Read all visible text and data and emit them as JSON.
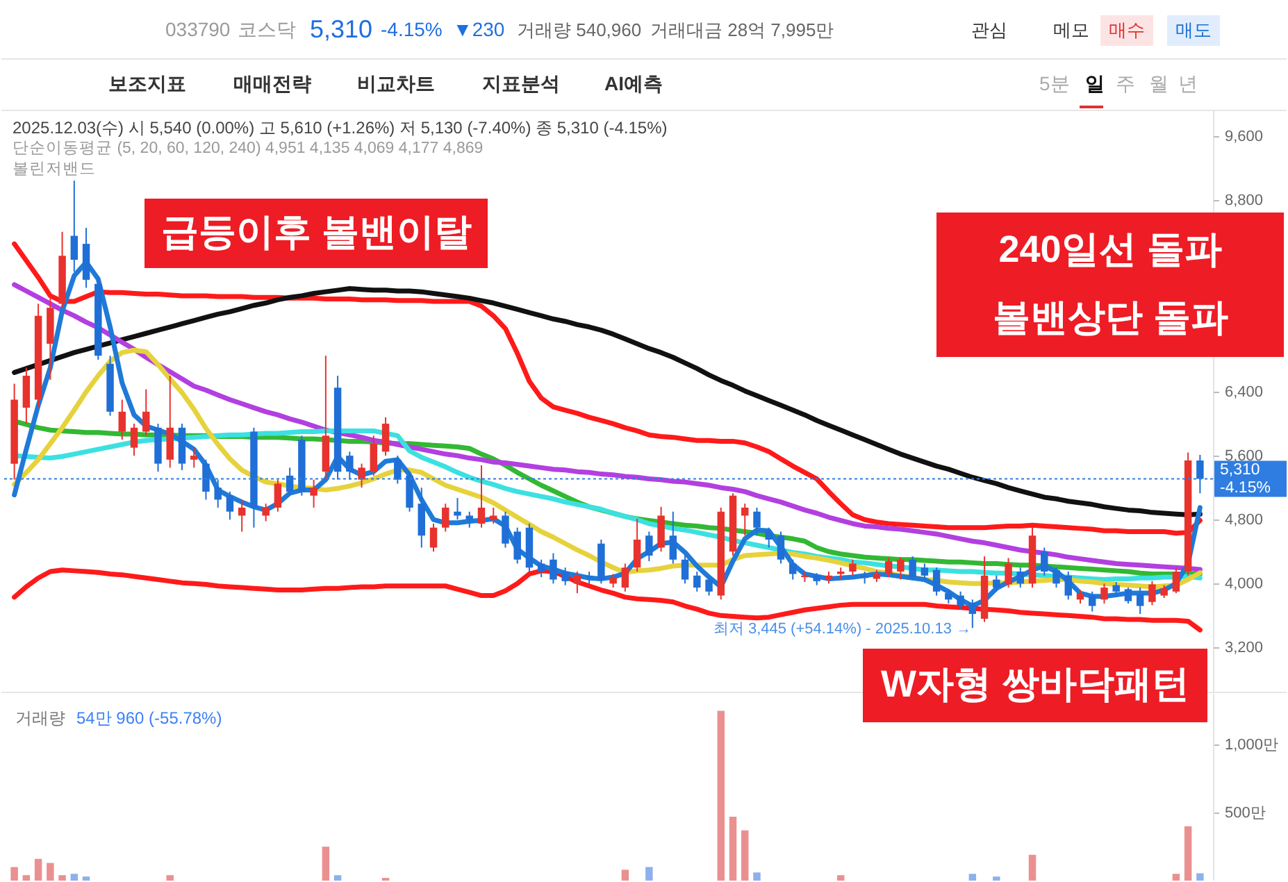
{
  "chart_data": [
    {
      "type": "other",
      "annotations": [
        "033790",
        "코스닥",
        "5,310",
        "-4.15%",
        "▼230",
        "거래량 540,960",
        "거래대금 28억 7,995만",
        "관심",
        "메모",
        "매수",
        "매도",
        "보조지표",
        "매매전략",
        "비교차트",
        "지표분석",
        "AI예측",
        "5분",
        "일",
        "주",
        "월",
        "년"
      ]
    },
    {
      "type": "candlestick",
      "categories": [
        null,
        null,
        null,
        null,
        null,
        null,
        null,
        null,
        null,
        null,
        null,
        null,
        null,
        null,
        null,
        null,
        null,
        null,
        null,
        null,
        null,
        null,
        null,
        null,
        null,
        null,
        null,
        null,
        null,
        null,
        null,
        null,
        null,
        null,
        null,
        null,
        null,
        null,
        null,
        null,
        null,
        null,
        null,
        null,
        null,
        null,
        null,
        null,
        null,
        null,
        null,
        null,
        null,
        null,
        null,
        null,
        null,
        null,
        null,
        null,
        null,
        null,
        null,
        null,
        null,
        null,
        null,
        null,
        null,
        null,
        null,
        null,
        null,
        null,
        null,
        null,
        null,
        null,
        null,
        null,
        null,
        null,
        null,
        null,
        null,
        null,
        null,
        null,
        null,
        null,
        null,
        null,
        null,
        null,
        null,
        null,
        null,
        null,
        null,
        null
      ],
      "ohlc": [
        [
          5500,
          6500,
          5300,
          6300
        ],
        [
          6200,
          6700,
          6000,
          6600
        ],
        [
          6300,
          7500,
          6200,
          7350
        ],
        [
          7000,
          7600,
          6550,
          7450
        ],
        [
          7500,
          8400,
          7450,
          8100
        ],
        [
          8350,
          9040,
          7900,
          8050
        ],
        [
          8250,
          8450,
          7700,
          7800
        ],
        [
          7750,
          7850,
          6800,
          6850
        ],
        [
          6750,
          6850,
          6100,
          6150
        ],
        [
          5900,
          6300,
          5800,
          6150
        ],
        [
          5700,
          6000,
          5600,
          5950
        ],
        [
          5900,
          6430,
          5850,
          6150
        ],
        [
          5950,
          6000,
          5400,
          5500
        ],
        [
          5550,
          6600,
          5450,
          5950
        ],
        [
          5950,
          6000,
          5420,
          5500
        ],
        [
          5550,
          5700,
          5450,
          5600
        ],
        [
          5500,
          5550,
          5050,
          5150
        ],
        [
          5200,
          5300,
          4950,
          5050
        ],
        [
          5100,
          5150,
          4800,
          4900
        ],
        [
          4850,
          5050,
          4650,
          4950
        ],
        [
          5900,
          5950,
          4700,
          4950
        ],
        [
          4850,
          5000,
          4780,
          4950
        ],
        [
          4950,
          5300,
          4900,
          5250
        ],
        [
          5350,
          5450,
          5100,
          5150
        ],
        [
          5800,
          5850,
          5100,
          5150
        ],
        [
          5100,
          5300,
          4950,
          5200
        ],
        [
          5400,
          6850,
          5300,
          5850
        ],
        [
          6450,
          6600,
          5300,
          5400
        ],
        [
          5600,
          5650,
          5300,
          5400
        ],
        [
          5300,
          5500,
          5200,
          5450
        ],
        [
          5400,
          5850,
          5350,
          5750
        ],
        [
          5650,
          6080,
          5600,
          6000
        ],
        [
          5550,
          5600,
          5250,
          5300
        ],
        [
          5350,
          5400,
          4900,
          4950
        ],
        [
          5000,
          5200,
          4450,
          4600
        ],
        [
          4450,
          4750,
          4400,
          4700
        ],
        [
          4700,
          5000,
          4650,
          4950
        ],
        [
          4900,
          5070,
          4800,
          4850
        ],
        [
          4850,
          4900,
          4700,
          4800
        ],
        [
          4750,
          5480,
          4700,
          4950
        ],
        [
          4800,
          4950,
          4750,
          4850
        ],
        [
          4850,
          4900,
          4450,
          4500
        ],
        [
          4650,
          4700,
          4250,
          4300
        ],
        [
          4700,
          4750,
          4150,
          4200
        ],
        [
          4250,
          4300,
          4080,
          4150
        ],
        [
          4300,
          4380,
          4000,
          4050
        ],
        [
          4150,
          4200,
          3980,
          4030
        ],
        [
          4000,
          4150,
          3880,
          4100
        ],
        [
          4100,
          4150,
          4000,
          4080
        ],
        [
          4500,
          4550,
          4000,
          4050
        ],
        [
          4000,
          4120,
          3950,
          4080
        ],
        [
          3950,
          4250,
          3900,
          4200
        ],
        [
          4200,
          4810,
          4150,
          4550
        ],
        [
          4600,
          4650,
          4280,
          4350
        ],
        [
          4450,
          4960,
          4400,
          4850
        ],
        [
          4600,
          4900,
          4250,
          4300
        ],
        [
          4300,
          4350,
          4000,
          4050
        ],
        [
          4100,
          4150,
          3900,
          3950
        ],
        [
          4050,
          4100,
          3850,
          3900
        ],
        [
          3850,
          4950,
          3800,
          4900
        ],
        [
          4400,
          5130,
          4350,
          5100
        ],
        [
          4850,
          5000,
          4600,
          4950
        ],
        [
          4900,
          4950,
          4600,
          4700
        ],
        [
          4650,
          4700,
          4450,
          4550
        ],
        [
          4600,
          4650,
          4250,
          4300
        ],
        [
          4250,
          4300,
          4050,
          4120
        ],
        [
          4080,
          4150,
          4020,
          4100
        ],
        [
          4100,
          4130,
          3980,
          4030
        ],
        [
          4050,
          4150,
          4000,
          4100
        ],
        [
          4120,
          4200,
          4050,
          4150
        ],
        [
          4150,
          4300,
          4100,
          4250
        ],
        [
          4100,
          4150,
          4000,
          4070
        ],
        [
          4060,
          4170,
          4020,
          4120
        ],
        [
          4120,
          4320,
          4080,
          4280
        ],
        [
          4150,
          4330,
          4050,
          4300
        ],
        [
          4300,
          4340,
          4050,
          4080
        ],
        [
          4200,
          4250,
          4050,
          4100
        ],
        [
          4170,
          4200,
          3850,
          3900
        ],
        [
          3880,
          3920,
          3750,
          3800
        ],
        [
          3850,
          3900,
          3680,
          3720
        ],
        [
          3760,
          3800,
          3445,
          3620
        ],
        [
          3560,
          4340,
          3520,
          4100
        ],
        [
          4050,
          4100,
          3900,
          3950
        ],
        [
          3990,
          4320,
          3950,
          4250
        ],
        [
          4150,
          4200,
          3950,
          4000
        ],
        [
          4000,
          4700,
          3950,
          4600
        ],
        [
          4400,
          4450,
          4100,
          4150
        ],
        [
          4170,
          4200,
          3950,
          4000
        ],
        [
          4100,
          4150,
          3800,
          3850
        ],
        [
          3800,
          3920,
          3750,
          3880
        ],
        [
          3850,
          3900,
          3650,
          3720
        ],
        [
          3800,
          4000,
          3750,
          3950
        ],
        [
          3980,
          4020,
          3850,
          3900
        ],
        [
          3930,
          3950,
          3750,
          3780
        ],
        [
          3870,
          3950,
          3620,
          3720
        ],
        [
          3770,
          4030,
          3730,
          3990
        ],
        [
          3850,
          3980,
          3820,
          3940
        ],
        [
          3900,
          4200,
          3880,
          4150
        ],
        [
          4150,
          5640,
          4100,
          5540
        ],
        [
          5540,
          5610,
          5130,
          5310
        ]
      ],
      "colors": [
        "#e8322e",
        "#e8322e",
        "#e8322e",
        "#e8322e",
        "#e8322e",
        "#1f6fd6",
        "#1f6fd6",
        "#1f6fd6",
        "#1f6fd6",
        "#e8322e",
        "#e8322e",
        "#e8322e",
        "#1f6fd6",
        "#e8322e",
        "#1f6fd6",
        "#e8322e",
        "#1f6fd6",
        "#1f6fd6",
        "#1f6fd6",
        "#e8322e",
        "#1f6fd6",
        "#e8322e",
        "#e8322e",
        "#1f6fd6",
        "#1f6fd6",
        "#e8322e",
        "#e8322e",
        "#1f6fd6",
        "#1f6fd6",
        "#e8322e",
        "#e8322e",
        "#e8322e",
        "#1f6fd6",
        "#1f6fd6",
        "#1f6fd6",
        "#e8322e",
        "#e8322e",
        "#1f6fd6",
        "#1f6fd6",
        "#e8322e",
        "#e8322e",
        "#1f6fd6",
        "#1f6fd6",
        "#1f6fd6",
        "#1f6fd6",
        "#1f6fd6",
        "#1f6fd6",
        "#e8322e",
        "#1f6fd6",
        "#1f6fd6",
        "#e8322e",
        "#e8322e",
        "#e8322e",
        "#1f6fd6",
        "#e8322e",
        "#1f6fd6",
        "#1f6fd6",
        "#1f6fd6",
        "#1f6fd6",
        "#e8322e",
        "#e8322e",
        "#e8322e",
        "#1f6fd6",
        "#1f6fd6",
        "#1f6fd6",
        "#1f6fd6",
        "#e8322e",
        "#1f6fd6",
        "#e8322e",
        "#e8322e",
        "#e8322e",
        "#1f6fd6",
        "#e8322e",
        "#e8322e",
        "#e8322e",
        "#1f6fd6",
        "#1f6fd6",
        "#1f6fd6",
        "#1f6fd6",
        "#1f6fd6",
        "#1f6fd6",
        "#e8322e",
        "#1f6fd6",
        "#e8322e",
        "#1f6fd6",
        "#e8322e",
        "#1f6fd6",
        "#1f6fd6",
        "#1f6fd6",
        "#e8322e",
        "#1f6fd6",
        "#e8322e",
        "#1f6fd6",
        "#1f6fd6",
        "#1f6fd6",
        "#e8322e",
        "#e8322e",
        "#e8322e",
        "#e8322e",
        "#1f6fd6"
      ],
      "series": [
        {
          "type": "line",
          "color": "#ff1a1a",
          "values": [
            8250,
            8040,
            7830,
            7600,
            7530,
            7530,
            7590,
            7650,
            7640,
            7640,
            7630,
            7620,
            7620,
            7610,
            7600,
            7600,
            7600,
            7590,
            7590,
            7590,
            7580,
            7580,
            7580,
            7570,
            7570,
            7570,
            7560,
            7560,
            7560,
            7550,
            7550,
            7550,
            7540,
            7540,
            7540,
            7530,
            7530,
            7530,
            7530,
            7470,
            7350,
            7190,
            6880,
            6530,
            6320,
            6210,
            6170,
            6130,
            6080,
            6040,
            6000,
            5950,
            5910,
            5860,
            5840,
            5830,
            5810,
            5790,
            5790,
            5780,
            5780,
            5760,
            5710,
            5650,
            5560,
            5470,
            5390,
            5310,
            5150,
            5000,
            4860,
            4800,
            4770,
            4750,
            4740,
            4730,
            4720,
            4710,
            4700,
            4700,
            4700,
            4700,
            4710,
            4720,
            4720,
            4730,
            4720,
            4710,
            4700,
            4690,
            4680,
            4660,
            4660,
            4650,
            4650,
            4650,
            4650,
            4630,
            4640,
            4790
          ]
        },
        {
          "type": "line",
          "color": "#33b833",
          "values": [
            6030,
            5990,
            5950,
            5920,
            5910,
            5900,
            5890,
            5890,
            5880,
            5870,
            5870,
            5860,
            5860,
            5860,
            5850,
            5850,
            5850,
            5840,
            5840,
            5840,
            5830,
            5830,
            5830,
            5820,
            5810,
            5810,
            5800,
            5790,
            5780,
            5780,
            5770,
            5760,
            5750,
            5750,
            5740,
            5730,
            5720,
            5710,
            5690,
            5620,
            5560,
            5480,
            5390,
            5310,
            5230,
            5160,
            5090,
            5020,
            4960,
            4920,
            4880,
            4840,
            4810,
            4790,
            4770,
            4750,
            4730,
            4720,
            4700,
            4690,
            4670,
            4650,
            4630,
            4600,
            4580,
            4560,
            4530,
            4450,
            4400,
            4370,
            4350,
            4330,
            4320,
            4310,
            4300,
            4300,
            4290,
            4280,
            4270,
            4270,
            4260,
            4250,
            4250,
            4240,
            4230,
            4230,
            4220,
            4210,
            4200,
            4190,
            4180,
            4170,
            4160,
            4150,
            4130,
            4120,
            4120,
            4120,
            4120,
            4120
          ]
        },
        {
          "type": "line",
          "color": "#ff1a1a",
          "values": [
            3830,
            3960,
            4070,
            4150,
            4170,
            4160,
            4150,
            4140,
            4120,
            4110,
            4090,
            4070,
            4050,
            4030,
            4010,
            4000,
            3990,
            3970,
            3960,
            3950,
            3940,
            3930,
            3920,
            3920,
            3920,
            3930,
            3940,
            3940,
            3950,
            3960,
            3960,
            3970,
            3970,
            3970,
            3970,
            3970,
            3970,
            3930,
            3890,
            3850,
            3850,
            3910,
            4000,
            4120,
            4160,
            4150,
            4090,
            4020,
            3970,
            3920,
            3880,
            3830,
            3810,
            3800,
            3790,
            3770,
            3720,
            3680,
            3630,
            3600,
            3590,
            3580,
            3570,
            3580,
            3610,
            3640,
            3670,
            3690,
            3710,
            3730,
            3740,
            3740,
            3740,
            3740,
            3740,
            3740,
            3740,
            3720,
            3710,
            3700,
            3690,
            3680,
            3670,
            3660,
            3640,
            3630,
            3620,
            3610,
            3600,
            3590,
            3580,
            3560,
            3560,
            3550,
            3550,
            3540,
            3540,
            3540,
            3530,
            3420
          ]
        },
        {
          "type": "line",
          "color": "#111111",
          "values": [
            6640,
            6690,
            6740,
            6790,
            6840,
            6890,
            6930,
            6970,
            7010,
            7050,
            7090,
            7130,
            7170,
            7210,
            7250,
            7290,
            7330,
            7370,
            7400,
            7440,
            7480,
            7510,
            7550,
            7580,
            7600,
            7630,
            7650,
            7670,
            7690,
            7680,
            7670,
            7670,
            7660,
            7660,
            7650,
            7630,
            7610,
            7590,
            7570,
            7540,
            7510,
            7470,
            7430,
            7390,
            7350,
            7310,
            7280,
            7240,
            7210,
            7170,
            7120,
            7060,
            7000,
            6940,
            6890,
            6830,
            6760,
            6690,
            6610,
            6540,
            6480,
            6410,
            6350,
            6290,
            6230,
            6170,
            6110,
            6040,
            5980,
            5920,
            5860,
            5800,
            5740,
            5680,
            5620,
            5570,
            5520,
            5470,
            5430,
            5380,
            5330,
            5290,
            5250,
            5200,
            5160,
            5120,
            5080,
            5060,
            5030,
            5010,
            4990,
            4960,
            4940,
            4920,
            4910,
            4890,
            4880,
            4870,
            4860,
            4869
          ]
        },
        {
          "type": "line",
          "color": "#b23fe0",
          "values": [
            7740,
            7660,
            7580,
            7500,
            7420,
            7350,
            7270,
            7200,
            7110,
            7020,
            6930,
            6830,
            6740,
            6650,
            6560,
            6470,
            6420,
            6360,
            6300,
            6250,
            6200,
            6150,
            6110,
            6060,
            6020,
            5970,
            5920,
            5890,
            5860,
            5830,
            5790,
            5770,
            5740,
            5710,
            5680,
            5650,
            5620,
            5600,
            5570,
            5550,
            5520,
            5510,
            5490,
            5470,
            5450,
            5430,
            5420,
            5400,
            5390,
            5370,
            5360,
            5340,
            5330,
            5310,
            5300,
            5280,
            5270,
            5250,
            5230,
            5200,
            5180,
            5150,
            5100,
            5060,
            5020,
            4970,
            4920,
            4880,
            4830,
            4790,
            4750,
            4720,
            4710,
            4690,
            4680,
            4660,
            4640,
            4620,
            4590,
            4560,
            4530,
            4510,
            4480,
            4450,
            4420,
            4400,
            4380,
            4360,
            4330,
            4310,
            4290,
            4270,
            4250,
            4240,
            4230,
            4220,
            4210,
            4200,
            4190,
            4177
          ]
        },
        {
          "type": "line",
          "color": "#3de0e0",
          "values": [
            5600,
            5590,
            5580,
            5570,
            5590,
            5620,
            5650,
            5680,
            5710,
            5740,
            5770,
            5790,
            5800,
            5810,
            5820,
            5830,
            5840,
            5850,
            5860,
            5860,
            5870,
            5880,
            5880,
            5890,
            5900,
            5900,
            5910,
            5910,
            5910,
            5910,
            5910,
            5880,
            5850,
            5660,
            5580,
            5520,
            5460,
            5390,
            5330,
            5280,
            5240,
            5190,
            5150,
            5120,
            5090,
            5060,
            5020,
            4990,
            4960,
            4930,
            4880,
            4840,
            4800,
            4750,
            4720,
            4690,
            4670,
            4640,
            4610,
            4580,
            4540,
            4510,
            4480,
            4450,
            4420,
            4390,
            4370,
            4340,
            4320,
            4300,
            4270,
            4260,
            4240,
            4220,
            4210,
            4190,
            4170,
            4170,
            4160,
            4150,
            4150,
            4140,
            4130,
            4130,
            4120,
            4110,
            4100,
            4090,
            4080,
            4070,
            4060,
            4050,
            4060,
            4060,
            4070,
            4070,
            4080,
            4080,
            4090,
            4069
          ]
        },
        {
          "type": "line",
          "color": "#e6d23c",
          "values": [
            5240,
            5390,
            5550,
            5750,
            5950,
            6170,
            6400,
            6600,
            6780,
            6890,
            6920,
            6900,
            6740,
            6560,
            6390,
            6180,
            5940,
            5740,
            5560,
            5420,
            5340,
            5270,
            5250,
            5220,
            5200,
            5190,
            5170,
            5190,
            5220,
            5260,
            5310,
            5370,
            5420,
            5420,
            5390,
            5310,
            5230,
            5180,
            5130,
            5080,
            5010,
            4920,
            4830,
            4740,
            4650,
            4580,
            4500,
            4420,
            4350,
            4270,
            4200,
            4140,
            4160,
            4170,
            4190,
            4220,
            4230,
            4230,
            4230,
            4230,
            4300,
            4350,
            4360,
            4370,
            4380,
            4370,
            4340,
            4320,
            4290,
            4260,
            4220,
            4190,
            4150,
            4130,
            4100,
            4080,
            4050,
            4040,
            4020,
            4010,
            4000,
            4000,
            4010,
            4010,
            4020,
            4030,
            4040,
            4050,
            4050,
            4030,
            4020,
            4000,
            3990,
            3980,
            3970,
            3960,
            3970,
            3980,
            4050,
            4135
          ]
        },
        {
          "type": "line",
          "color": "#1f7ad8",
          "values": [
            5110,
            5680,
            6230,
            6700,
            7410,
            7850,
            8020,
            7810,
            7210,
            6510,
            6110,
            5970,
            5920,
            5870,
            5780,
            5680,
            5480,
            5170,
            5090,
            5020,
            4960,
            4920,
            5000,
            5130,
            5170,
            5170,
            5300,
            5590,
            5430,
            5360,
            5400,
            5530,
            5550,
            5360,
            5050,
            4800,
            4760,
            4760,
            4780,
            4790,
            4810,
            4720,
            4430,
            4320,
            4220,
            4180,
            4130,
            4100,
            4070,
            4060,
            4080,
            4130,
            4310,
            4400,
            4500,
            4520,
            4390,
            4220,
            4080,
            3960,
            4280,
            4560,
            4670,
            4660,
            4460,
            4240,
            4120,
            4090,
            4060,
            4070,
            4080,
            4100,
            4120,
            4110,
            4090,
            4070,
            4050,
            3980,
            3900,
            3800,
            3720,
            3790,
            3940,
            4020,
            4090,
            4170,
            4220,
            4150,
            4030,
            3880,
            3840,
            3840,
            3860,
            3880,
            3880,
            3880,
            3920,
            4000,
            4250,
            4951
          ]
        }
      ],
      "ylim": [
        2630,
        9910
      ],
      "yticks": [
        {
          "value": 3200,
          "label": "3,200"
        },
        {
          "value": 4000,
          "label": "4,000"
        },
        {
          "value": 4800,
          "label": "4,800"
        },
        {
          "value": 5600,
          "label": "5,600"
        },
        {
          "value": 6400,
          "label": "6,400"
        },
        {
          "value": 8800,
          "label": "8,800"
        },
        {
          "value": 9600,
          "label": "9,600"
        }
      ],
      "tick_labels": "y",
      "ref_lines": [
        {
          "axis": "y",
          "value": 5310,
          "label": "5,310\n-4.15%",
          "color": "#2f7de1",
          "line_style": "dotted"
        }
      ],
      "annotations": [
        "2025.12.03(수) 시 5,540 (0.00%) 고 5,610 (+1.26%) 저 5,130 (-7.40%) 종 5,310 (-4.15%)",
        "단순이동평균 (5, 20, 60, 120, 240) 4,951 4,135 4,069 4,177 4,869",
        "볼린저밴드",
        "급등이후 볼밴이탈",
        "240일선 돌파\n볼밴상단 돌파",
        "W자형 쌍바닥패턴",
        "최저 3,445 (+54.14%) - 2025.10.13 →"
      ]
    },
    {
      "type": "bar",
      "categories": [
        null,
        null,
        null,
        null,
        null,
        null,
        null,
        null,
        null,
        null,
        null,
        null,
        null,
        null,
        null,
        null,
        null,
        null,
        null,
        null,
        null,
        null,
        null,
        null,
        null,
        null,
        null,
        null,
        null,
        null,
        null,
        null,
        null,
        null,
        null,
        null,
        null,
        null,
        null,
        null,
        null,
        null,
        null,
        null,
        null,
        null,
        null,
        null,
        null,
        null,
        null,
        null,
        null,
        null,
        null,
        null,
        null,
        null,
        null,
        null,
        null,
        null,
        null,
        null,
        null,
        null,
        null,
        null,
        null,
        null,
        null,
        null,
        null,
        null,
        null,
        null,
        null,
        null,
        null,
        null,
        null,
        null,
        null,
        null,
        null,
        null,
        null,
        null,
        null,
        null,
        null,
        null,
        null,
        null,
        null,
        null,
        null,
        null,
        null,
        null
      ],
      "values": [
        100,
        40,
        160,
        130,
        40,
        50,
        30,
        null,
        null,
        null,
        null,
        null,
        null,
        40,
        null,
        null,
        null,
        null,
        null,
        null,
        null,
        null,
        null,
        null,
        null,
        null,
        250,
        40,
        null,
        null,
        null,
        20,
        null,
        null,
        null,
        null,
        null,
        null,
        null,
        null,
        null,
        null,
        null,
        null,
        null,
        null,
        null,
        null,
        null,
        null,
        null,
        80,
        null,
        100,
        null,
        null,
        null,
        null,
        null,
        1250,
        470,
        370,
        60,
        null,
        null,
        null,
        null,
        null,
        null,
        40,
        null,
        null,
        null,
        null,
        null,
        null,
        null,
        null,
        null,
        null,
        50,
        null,
        30,
        null,
        null,
        190,
        null,
        null,
        null,
        null,
        null,
        null,
        null,
        null,
        null,
        null,
        null,
        50,
        400,
        54
      ],
      "colors": [
        "#ea9090",
        "#ea9090",
        "#ea9090",
        "#ea9090",
        "#ea9090",
        "#8cb1ec",
        "#8cb1ec",
        "#8cb1ec",
        "#8cb1ec",
        "#ea9090",
        "#ea9090",
        "#ea9090",
        "#8cb1ec",
        "#ea9090",
        "#8cb1ec",
        "#ea9090",
        "#8cb1ec",
        "#8cb1ec",
        "#8cb1ec",
        "#ea9090",
        "#8cb1ec",
        "#ea9090",
        "#ea9090",
        "#8cb1ec",
        "#8cb1ec",
        "#ea9090",
        "#ea9090",
        "#8cb1ec",
        "#8cb1ec",
        "#ea9090",
        "#ea9090",
        "#ea9090",
        "#8cb1ec",
        "#8cb1ec",
        "#8cb1ec",
        "#ea9090",
        "#ea9090",
        "#8cb1ec",
        "#8cb1ec",
        "#ea9090",
        "#ea9090",
        "#8cb1ec",
        "#8cb1ec",
        "#8cb1ec",
        "#8cb1ec",
        "#8cb1ec",
        "#8cb1ec",
        "#ea9090",
        "#8cb1ec",
        "#8cb1ec",
        "#ea9090",
        "#ea9090",
        "#ea9090",
        "#8cb1ec",
        "#ea9090",
        "#8cb1ec",
        "#8cb1ec",
        "#8cb1ec",
        "#8cb1ec",
        "#ea9090",
        "#ea9090",
        "#ea9090",
        "#8cb1ec",
        "#8cb1ec",
        "#8cb1ec",
        "#8cb1ec",
        "#ea9090",
        "#8cb1ec",
        "#ea9090",
        "#ea9090",
        "#ea9090",
        "#8cb1ec",
        "#ea9090",
        "#ea9090",
        "#ea9090",
        "#8cb1ec",
        "#8cb1ec",
        "#8cb1ec",
        "#8cb1ec",
        "#8cb1ec",
        "#8cb1ec",
        "#ea9090",
        "#8cb1ec",
        "#ea9090",
        "#8cb1ec",
        "#ea9090",
        "#8cb1ec",
        "#8cb1ec",
        "#8cb1ec",
        "#ea9090",
        "#8cb1ec",
        "#ea9090",
        "#8cb1ec",
        "#8cb1ec",
        "#8cb1ec",
        "#ea9090",
        "#ea9090",
        "#ea9090",
        "#ea9090",
        "#8cb1ec"
      ],
      "ylim": [
        0,
        1380
      ],
      "yticks": [
        {
          "value": 500,
          "label": "500만"
        },
        {
          "value": 1000,
          "label": "1,000만"
        }
      ],
      "tick_labels": "y",
      "annotations": [
        "거래량",
        "54만 960 (-55.78%)"
      ]
    }
  ]
}
